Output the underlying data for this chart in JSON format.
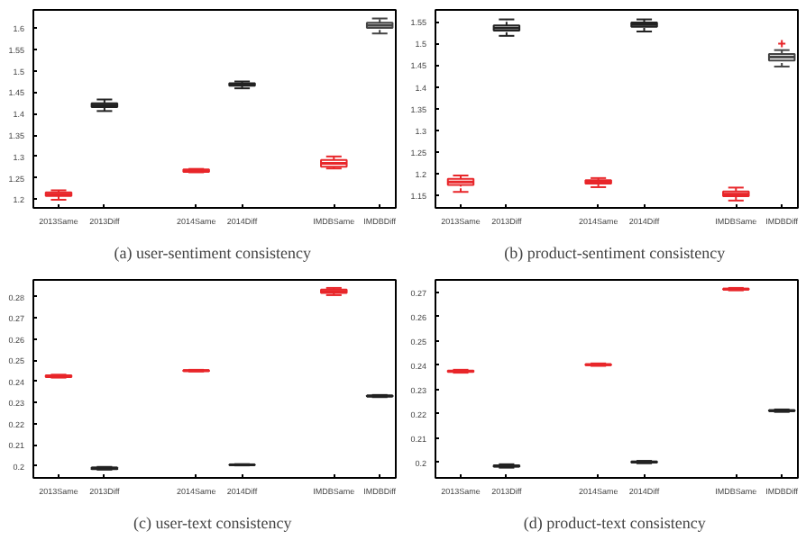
{
  "chart_data": [
    {
      "type": "box",
      "title": "(a)  user-sentiment consistency",
      "categories": [
        "2013Same",
        "2013Diff",
        null,
        "2014Same",
        "2014Diff",
        null,
        "IMDBSame",
        "IMDBDiff"
      ],
      "colors": [
        "#e8262a",
        "#222222",
        null,
        "#e8262a",
        "#222222",
        null,
        "#e8262a",
        "#444444"
      ],
      "boxes": [
        {
          "low": 1.199,
          "q1": 1.208,
          "median": 1.212,
          "q3": 1.216,
          "high": 1.221
        },
        {
          "low": 1.406,
          "q1": 1.415,
          "median": 1.42,
          "q3": 1.424,
          "high": 1.433
        },
        null,
        {
          "low": 1.263,
          "q1": 1.264,
          "median": 1.267,
          "q3": 1.27,
          "high": 1.271
        },
        {
          "low": 1.459,
          "q1": 1.465,
          "median": 1.468,
          "q3": 1.471,
          "high": 1.475
        },
        null,
        {
          "low": 1.272,
          "q1": 1.276,
          "median": 1.284,
          "q3": 1.292,
          "high": 1.3
        },
        {
          "low": 1.587,
          "q1": 1.6,
          "median": 1.606,
          "q3": 1.612,
          "high": 1.622
        }
      ],
      "ylim": [
        1.18,
        1.642
      ],
      "yticks": [
        1.2,
        1.25,
        1.3,
        1.35,
        1.4,
        1.45,
        1.5,
        1.55,
        1.6
      ],
      "grid": false
    },
    {
      "type": "box",
      "title": "(b)  product-sentiment consistency",
      "categories": [
        "2013Same",
        "2013Diff",
        null,
        "2014Same",
        "2014Diff",
        null,
        "IMDBSame",
        "IMDBDiff"
      ],
      "colors": [
        "#e8262a",
        "#222222",
        null,
        "#e8262a",
        "#222222",
        null,
        "#e8262a",
        "#444444"
      ],
      "boxes": [
        {
          "low": 1.157,
          "q1": 1.173,
          "median": 1.18,
          "q3": 1.187,
          "high": 1.195
        },
        {
          "low": 1.518,
          "q1": 1.53,
          "median": 1.536,
          "q3": 1.542,
          "high": 1.556
        },
        null,
        {
          "low": 1.168,
          "q1": 1.176,
          "median": 1.18,
          "q3": 1.184,
          "high": 1.189
        },
        {
          "low": 1.528,
          "q1": 1.539,
          "median": 1.544,
          "q3": 1.549,
          "high": 1.556
        },
        null,
        {
          "low": 1.137,
          "q1": 1.147,
          "median": 1.152,
          "q3": 1.158,
          "high": 1.167
        },
        {
          "low": 1.447,
          "q1": 1.461,
          "median": 1.469,
          "q3": 1.476,
          "high": 1.485,
          "outliers": [
            1.5
          ]
        }
      ],
      "ylim": [
        1.12,
        1.578
      ],
      "yticks": [
        1.15,
        1.2,
        1.25,
        1.3,
        1.35,
        1.4,
        1.45,
        1.5,
        1.55
      ],
      "grid": false
    },
    {
      "type": "box",
      "title": "(c)  user-text consistency",
      "categories": [
        "2013Same",
        "2013Diff",
        null,
        "2014Same",
        "2014Diff",
        null,
        "IMDBSame",
        "IMDBDiff"
      ],
      "colors": [
        "#e8262a",
        "#222222",
        null,
        "#e8262a",
        "#222222",
        null,
        "#e8262a",
        "#222222"
      ],
      "boxes": [
        {
          "low": 0.2418,
          "q1": 0.2421,
          "median": 0.2425,
          "q3": 0.2429,
          "high": 0.2432
        },
        {
          "low": 0.1983,
          "q1": 0.1986,
          "median": 0.199,
          "q3": 0.1993,
          "high": 0.1996
        },
        null,
        {
          "low": 0.2447,
          "q1": 0.2449,
          "median": 0.2451,
          "q3": 0.2453,
          "high": 0.2455
        },
        {
          "low": 0.2003,
          "q1": 0.2005,
          "median": 0.2006,
          "q3": 0.2007,
          "high": 0.2009
        },
        null,
        {
          "low": 0.2808,
          "q1": 0.2818,
          "median": 0.2826,
          "q3": 0.2834,
          "high": 0.2842
        },
        {
          "low": 0.2326,
          "q1": 0.2329,
          "median": 0.2331,
          "q3": 0.2333,
          "high": 0.2336
        }
      ],
      "ylim": [
        0.1944,
        0.288
      ],
      "yticks": [
        0.2,
        0.21,
        0.22,
        0.23,
        0.24,
        0.25,
        0.26,
        0.27,
        0.28
      ],
      "grid": false
    },
    {
      "type": "box",
      "title": "(d)  product-text consistency",
      "categories": [
        "2013Same",
        "2013Diff",
        null,
        "2014Same",
        "2014Diff",
        null,
        "IMDBSame",
        "IMDBDiff"
      ],
      "colors": [
        "#e8262a",
        "#222222",
        null,
        "#e8262a",
        "#222222",
        null,
        "#e8262a",
        "#222222"
      ],
      "boxes": [
        {
          "low": 0.2369,
          "q1": 0.2372,
          "median": 0.2375,
          "q3": 0.2378,
          "high": 0.2381
        },
        {
          "low": 0.1979,
          "q1": 0.1983,
          "median": 0.1986,
          "q3": 0.1989,
          "high": 0.1993
        },
        null,
        {
          "low": 0.2397,
          "q1": 0.24,
          "median": 0.2402,
          "q3": 0.2404,
          "high": 0.2407
        },
        {
          "low": 0.1997,
          "q1": 0.2,
          "median": 0.2002,
          "q3": 0.2004,
          "high": 0.2007
        },
        null,
        {
          "low": 0.2707,
          "q1": 0.271,
          "median": 0.2712,
          "q3": 0.2714,
          "high": 0.2717
        },
        {
          "low": 0.2208,
          "q1": 0.2211,
          "median": 0.2213,
          "q3": 0.2215,
          "high": 0.2218
        }
      ],
      "ylim": [
        0.1937,
        0.275
      ],
      "yticks": [
        0.2,
        0.21,
        0.22,
        0.23,
        0.24,
        0.25,
        0.26,
        0.27
      ],
      "grid": false
    }
  ]
}
